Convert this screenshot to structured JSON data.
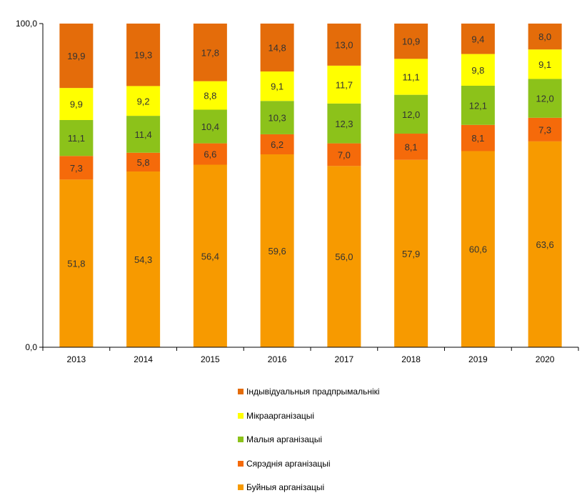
{
  "chart_data": {
    "type": "bar",
    "stacked": true,
    "categories": [
      "2013",
      "2014",
      "2015",
      "2016",
      "2017",
      "2018",
      "2019",
      "2020"
    ],
    "ylim": [
      0,
      100
    ],
    "y_tick_labels": [
      "0,0",
      "100,0"
    ],
    "grid": false,
    "legend_position": "bottom",
    "series": [
      {
        "name": "Буйныя арганізацыі",
        "color": "#F79A00",
        "values": [
          51.8,
          54.3,
          56.4,
          59.6,
          56.0,
          57.9,
          60.6,
          63.6
        ],
        "labels": [
          "51,8",
          "54,3",
          "56,4",
          "59,6",
          "56,0",
          "57,9",
          "60,6",
          "63,6"
        ]
      },
      {
        "name": "Сярэднія арганізацыі",
        "color": "#F56A0A",
        "values": [
          7.3,
          5.8,
          6.6,
          6.2,
          7.0,
          8.1,
          8.1,
          7.3
        ],
        "labels": [
          "7,3",
          "5,8",
          "6,6",
          "6,2",
          "7,0",
          "8,1",
          "8,1",
          "7,3"
        ]
      },
      {
        "name": "Малыя арганізацыі",
        "color": "#8CC21A",
        "values": [
          11.1,
          11.4,
          10.4,
          10.3,
          12.3,
          12.0,
          12.1,
          12.0
        ],
        "labels": [
          "11,1",
          "11,4",
          "10,4",
          "10,3",
          "12,3",
          "12,0",
          "12,1",
          "12,0"
        ]
      },
      {
        "name": "Мікраарганізацыі",
        "color": "#FFFF00",
        "values": [
          9.9,
          9.2,
          8.8,
          9.1,
          11.7,
          11.1,
          9.8,
          9.1
        ],
        "labels": [
          "9,9",
          "9,2",
          "8,8",
          "9,1",
          "11,7",
          "11,1",
          "9,8",
          "9,1"
        ]
      },
      {
        "name": "Індывідуальныя прадпрымальнікі",
        "color": "#E46C0A",
        "values": [
          19.9,
          19.3,
          17.8,
          14.8,
          13.0,
          10.9,
          9.4,
          8.0
        ],
        "labels": [
          "19,9",
          "19,3",
          "17,8",
          "14,8",
          "13,0",
          "10,9",
          "9,4",
          "8,0"
        ]
      }
    ]
  }
}
